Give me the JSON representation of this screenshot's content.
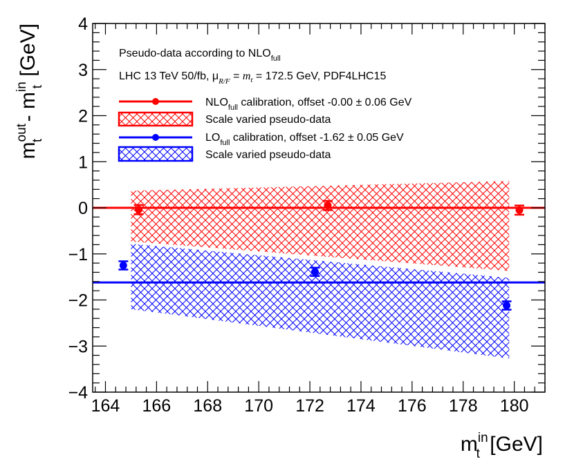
{
  "chart_data": {
    "type": "scatter",
    "xlabel": "m_t^in [GeV]",
    "ylabel": "m_t^out - m_t^in [GeV]",
    "xlim": [
      163.5,
      181.2
    ],
    "ylim": [
      -4,
      4
    ],
    "xticks": [
      164,
      166,
      168,
      170,
      172,
      174,
      176,
      178,
      180
    ],
    "yticks": [
      -4,
      -3,
      -2,
      -1,
      0,
      1,
      2,
      3,
      4
    ],
    "ytick_labels": [
      "−4",
      "−3",
      "−2",
      "−1",
      "0",
      "1",
      "2",
      "3",
      "4"
    ],
    "header": {
      "line1": "Pseudo-data according to NLO",
      "line1_sub": "full",
      "line2_a": "LHC 13 TeV 50/fb, μ",
      "line2_sub": "R/F",
      "line2_eq": " = ",
      "line2_m": "m",
      "line2_msub": "t",
      "line2_b": " = 172.5 GeV, PDF4LHC15"
    },
    "series": [
      {
        "name": "NLO_full calibration",
        "color": "#ff0000",
        "legend_prefix": "NLO",
        "legend_sub": "full",
        "legend_suffix": " calibration, offset -0.00 ± 0.06 GeV",
        "offset": -0.0,
        "offset_err": 0.06,
        "points": [
          {
            "x": 165.3,
            "y": -0.04,
            "yerr": 0.1
          },
          {
            "x": 172.7,
            "y": 0.05,
            "yerr": 0.1
          },
          {
            "x": 180.2,
            "y": -0.05,
            "yerr": 0.1
          }
        ],
        "band_label": "Scale varied pseudo-data",
        "band": {
          "x": [
            165.0,
            179.8
          ],
          "upper": [
            0.37,
            0.58
          ],
          "lower": [
            -0.73,
            -1.37
          ]
        }
      },
      {
        "name": "LO_full calibration",
        "color": "#0000ff",
        "legend_prefix": "LO",
        "legend_sub": "full",
        "legend_suffix": " calibration, offset -1.62 ± 0.05 GeV",
        "offset": -1.62,
        "offset_err": 0.05,
        "points": [
          {
            "x": 164.7,
            "y": -1.25,
            "yerr": 0.09
          },
          {
            "x": 172.2,
            "y": -1.39,
            "yerr": 0.09
          },
          {
            "x": 179.7,
            "y": -2.12,
            "yerr": 0.09
          }
        ],
        "band_label": "Scale varied pseudo-data",
        "band": {
          "x": [
            165.0,
            179.8
          ],
          "upper": [
            -0.78,
            -1.52
          ],
          "lower": [
            -2.2,
            -3.27
          ]
        }
      }
    ]
  }
}
